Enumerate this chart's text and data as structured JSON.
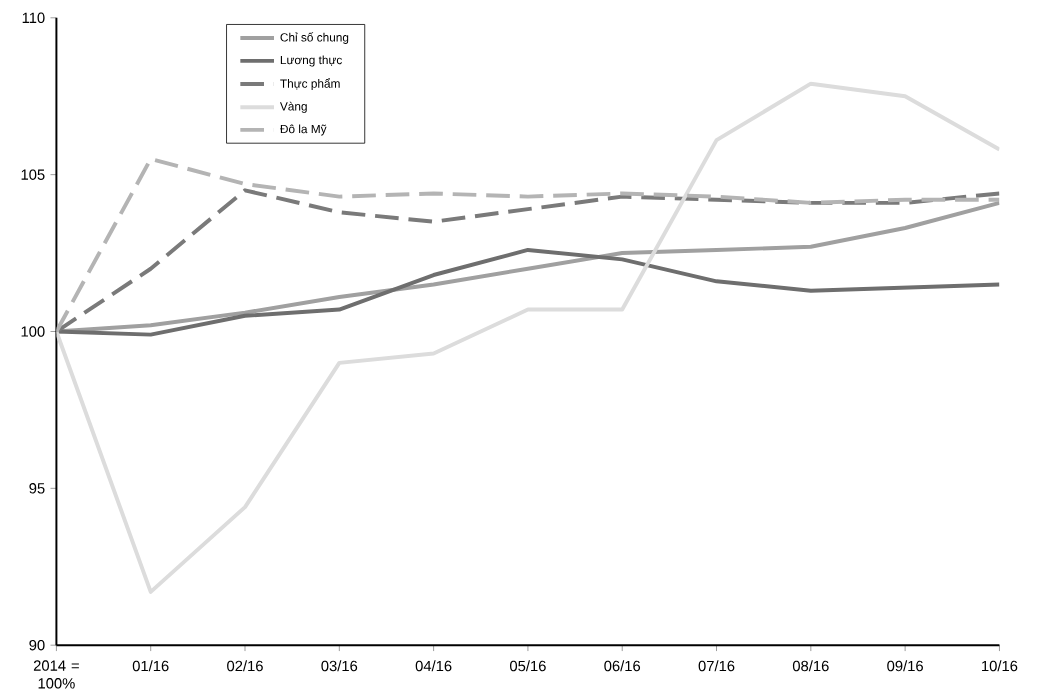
{
  "chart_data": {
    "type": "line",
    "categories": [
      "2014 = 100%",
      "01/16",
      "02/16",
      "03/16",
      "04/16",
      "05/16",
      "06/16",
      "07/16",
      "08/16",
      "09/16",
      "10/16"
    ],
    "ylim": [
      90,
      110
    ],
    "yticks": [
      90,
      95,
      100,
      105,
      110
    ],
    "grid": false,
    "legend": "top left",
    "marker": "none",
    "series": [
      {
        "name": "Chỉ số chung",
        "color": "#a0a0a0",
        "line_style": "solid",
        "values": [
          100,
          100.2,
          100.6,
          101.1,
          101.5,
          102.0,
          102.5,
          102.6,
          102.7,
          103.3,
          104.1
        ]
      },
      {
        "name": "Lương thực",
        "color": "#6e6e6e",
        "line_style": "solid",
        "values": [
          100,
          99.9,
          100.5,
          100.7,
          101.8,
          102.6,
          102.3,
          101.6,
          101.3,
          101.4,
          101.5
        ]
      },
      {
        "name": "Thực phẩm",
        "color": "#7a7a7a",
        "line_style": "dashed",
        "values": [
          100,
          102.0,
          104.5,
          103.8,
          103.5,
          103.9,
          104.3,
          104.2,
          104.1,
          104.1,
          104.4
        ]
      },
      {
        "name": "Vàng",
        "color": "#dcdcdc",
        "line_style": "solid",
        "values": [
          100,
          91.7,
          94.4,
          99.0,
          99.3,
          100.7,
          100.7,
          106.1,
          107.9,
          107.5,
          105.8
        ]
      },
      {
        "name": "Đô la Mỹ",
        "color": "#b4b4b4",
        "line_style": "dashed",
        "values": [
          100,
          105.5,
          104.7,
          104.3,
          104.4,
          104.3,
          104.4,
          104.3,
          104.1,
          104.2,
          104.2
        ]
      }
    ]
  }
}
